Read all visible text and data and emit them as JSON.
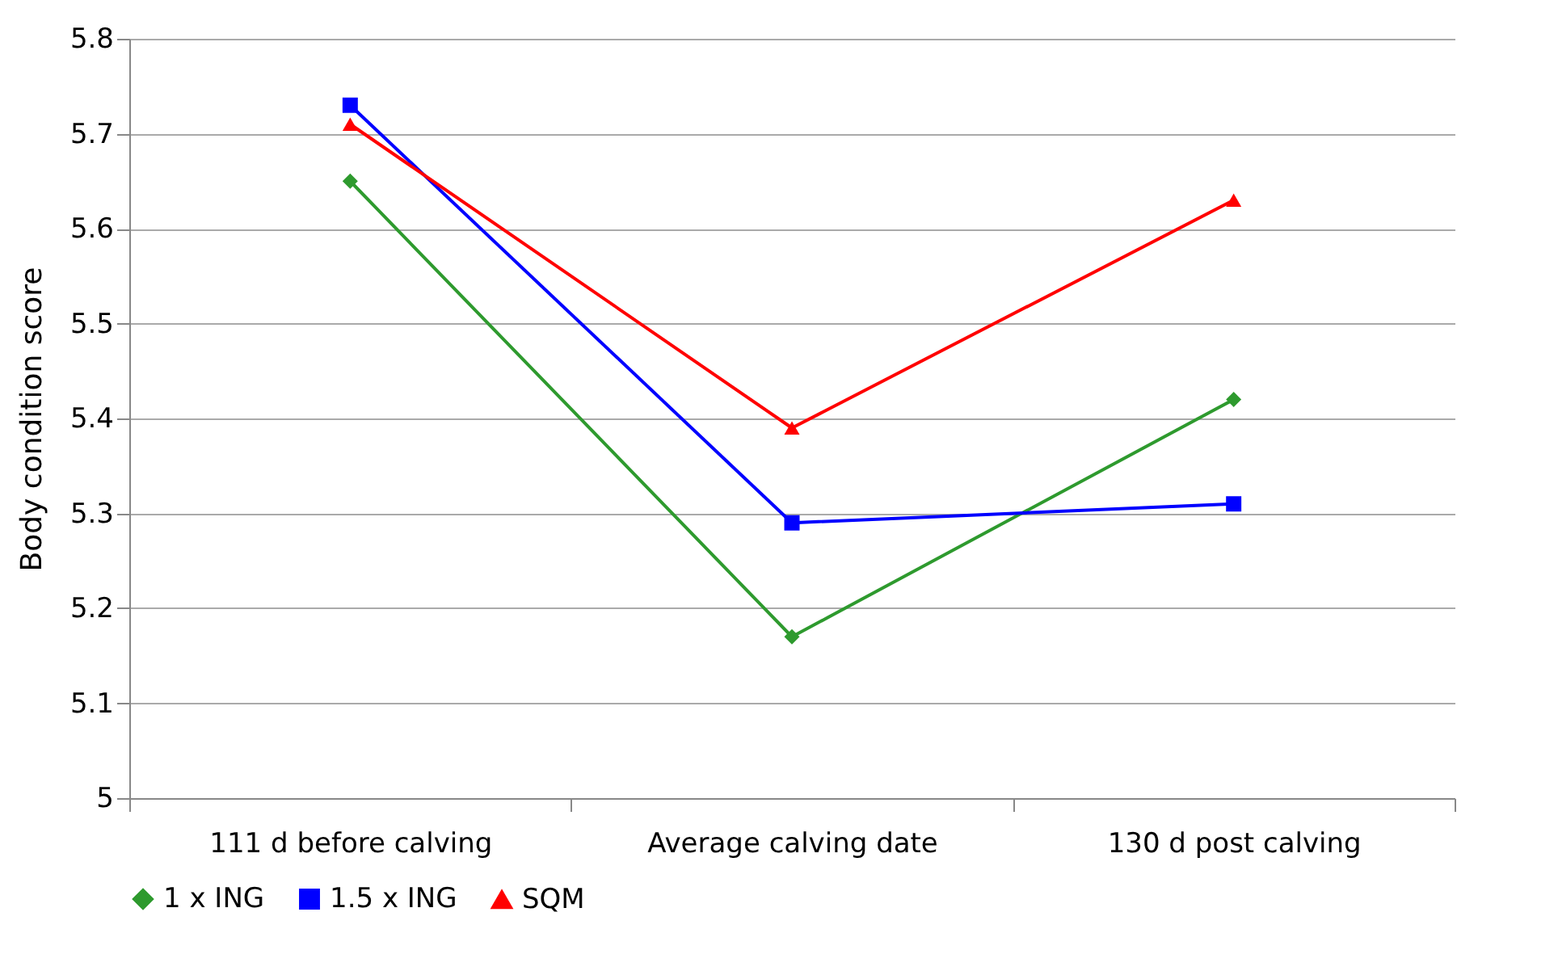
{
  "chart_data": {
    "type": "line",
    "ylabel": "Body condition score",
    "categories": [
      "111 d before calving",
      "Average calving date",
      "130 d post calving"
    ],
    "series": [
      {
        "name": "1 x ING",
        "color": "#2e9a2e",
        "marker": "diamond",
        "values": [
          5.65,
          5.17,
          5.42
        ]
      },
      {
        "name": "1.5 x ING",
        "color": "#0000ff",
        "marker": "square",
        "values": [
          5.73,
          5.29,
          5.31
        ]
      },
      {
        "name": "SQM",
        "color": "#ff0000",
        "marker": "triangle",
        "values": [
          5.71,
          5.39,
          5.63
        ]
      }
    ],
    "ylim": [
      5,
      5.8
    ],
    "yticks": [
      5,
      5.1,
      5.2,
      5.3,
      5.4,
      5.5,
      5.6,
      5.7,
      5.8
    ],
    "grid": "y",
    "legend": "bottom"
  }
}
